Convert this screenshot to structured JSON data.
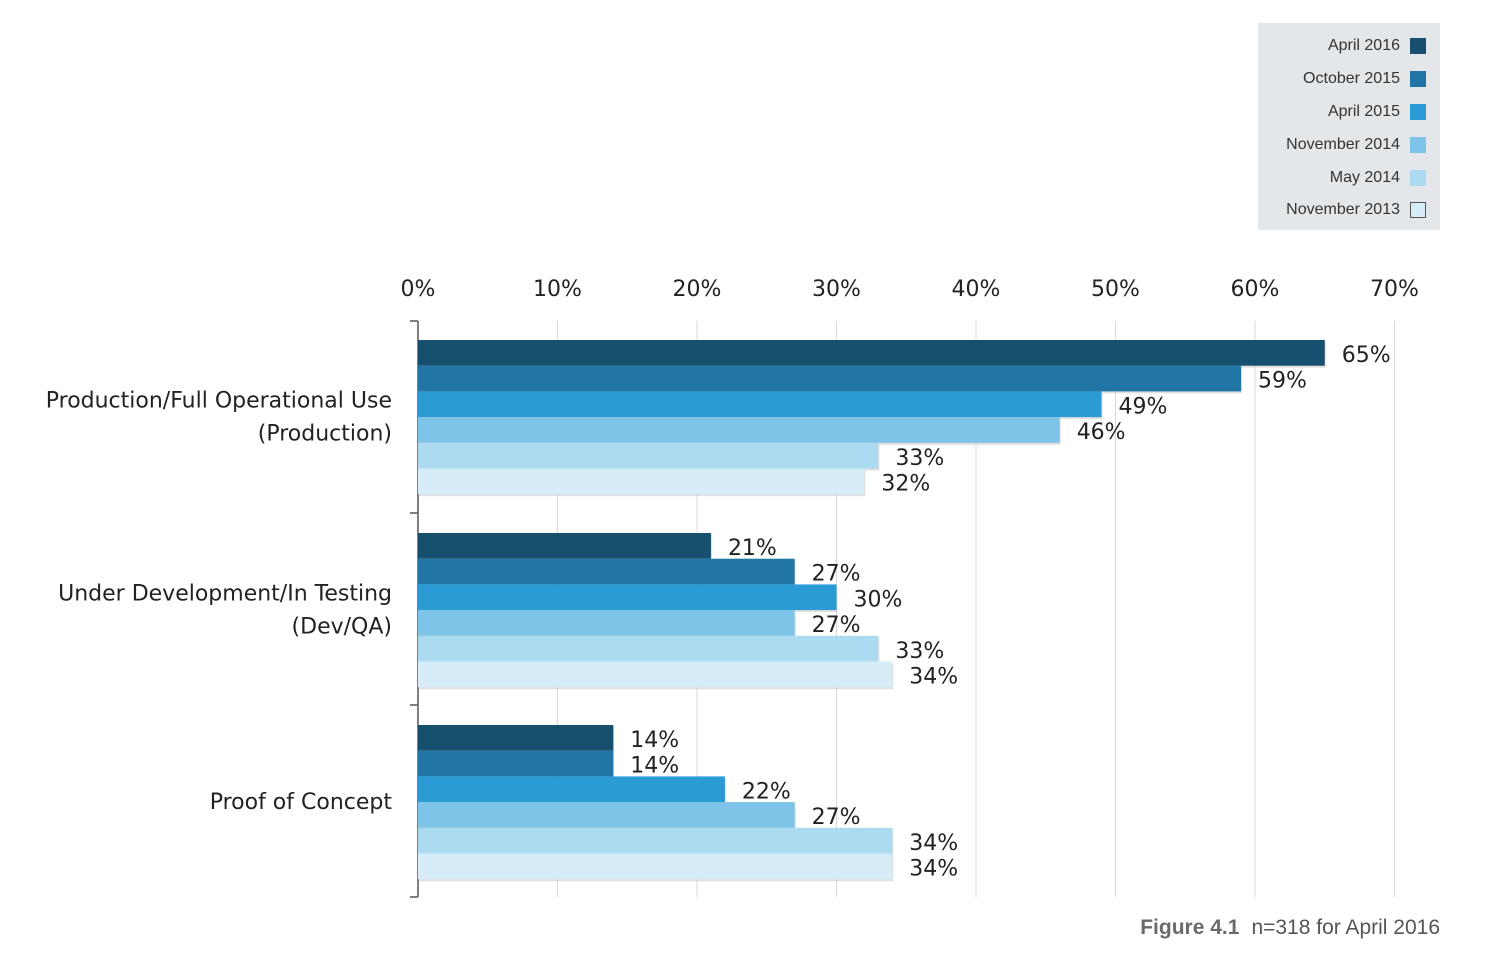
{
  "chart_data": {
    "type": "bar",
    "orientation": "horizontal",
    "categories": [
      [
        "Production/Full Operational Use",
        "(Production)"
      ],
      [
        "Under Development/In Testing",
        "(Dev/QA)"
      ],
      [
        "Proof of Concept"
      ]
    ],
    "series": [
      {
        "name": "April 2016",
        "color": "#174f6e",
        "values": [
          65,
          21,
          14
        ]
      },
      {
        "name": "October 2015",
        "color": "#2276a6",
        "values": [
          59,
          27,
          14
        ]
      },
      {
        "name": "April 2015",
        "color": "#2b9bd6",
        "values": [
          49,
          30,
          22
        ]
      },
      {
        "name": "November 2014",
        "color": "#7ec3e8",
        "values": [
          46,
          27,
          27
        ]
      },
      {
        "name": "May 2014",
        "color": "#acdaf1",
        "values": [
          33,
          33,
          34
        ]
      },
      {
        "name": "November 2013",
        "color": "#d6ecf8",
        "values": [
          32,
          34,
          34
        ]
      }
    ],
    "xlim": [
      0,
      70
    ],
    "xticks": [
      0,
      10,
      20,
      30,
      40,
      50,
      60,
      70
    ],
    "tick_suffix": "%",
    "grid": true,
    "legend_position": "top-right"
  },
  "caption": {
    "figure_label": "Figure 4.1",
    "note": "n=318 for April 2016"
  }
}
